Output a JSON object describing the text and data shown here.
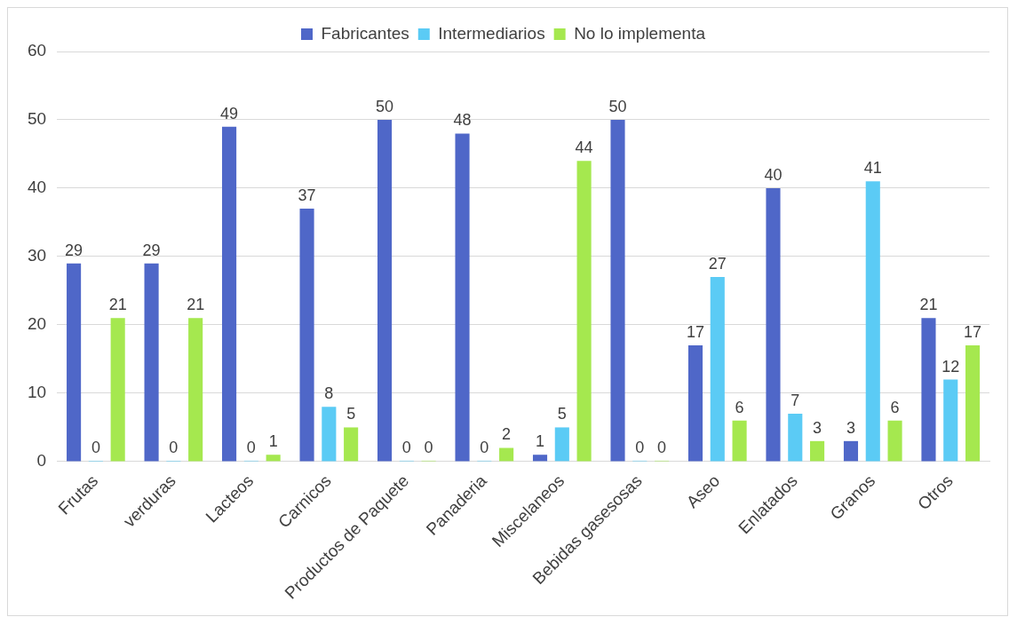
{
  "chart_data": {
    "type": "bar",
    "categories": [
      "Frutas",
      "verduras",
      "Lacteos",
      "Carnicos",
      "Productos de Paquete",
      "Panaderia",
      "Miscelaneos",
      "Bebidas gasesosas",
      "Aseo",
      "Enlatados",
      "Granos",
      "Otros"
    ],
    "series": [
      {
        "name": "Fabricantes",
        "color": "#4f67c8",
        "values": [
          29,
          29,
          49,
          37,
          50,
          48,
          1,
          50,
          17,
          40,
          3,
          21
        ]
      },
      {
        "name": "Intermediarios",
        "color": "#5bcbf5",
        "values": [
          0,
          0,
          0,
          8,
          0,
          0,
          5,
          0,
          27,
          7,
          41,
          12
        ]
      },
      {
        "name": "No lo implementa",
        "color": "#a5e84f",
        "values": [
          21,
          21,
          1,
          5,
          0,
          2,
          44,
          0,
          6,
          3,
          6,
          17
        ]
      }
    ],
    "ylim": [
      0,
      60
    ],
    "yticks": [
      0,
      10,
      20,
      30,
      40,
      50,
      60
    ],
    "grid": "y",
    "legend": "top",
    "data_labels": true
  }
}
